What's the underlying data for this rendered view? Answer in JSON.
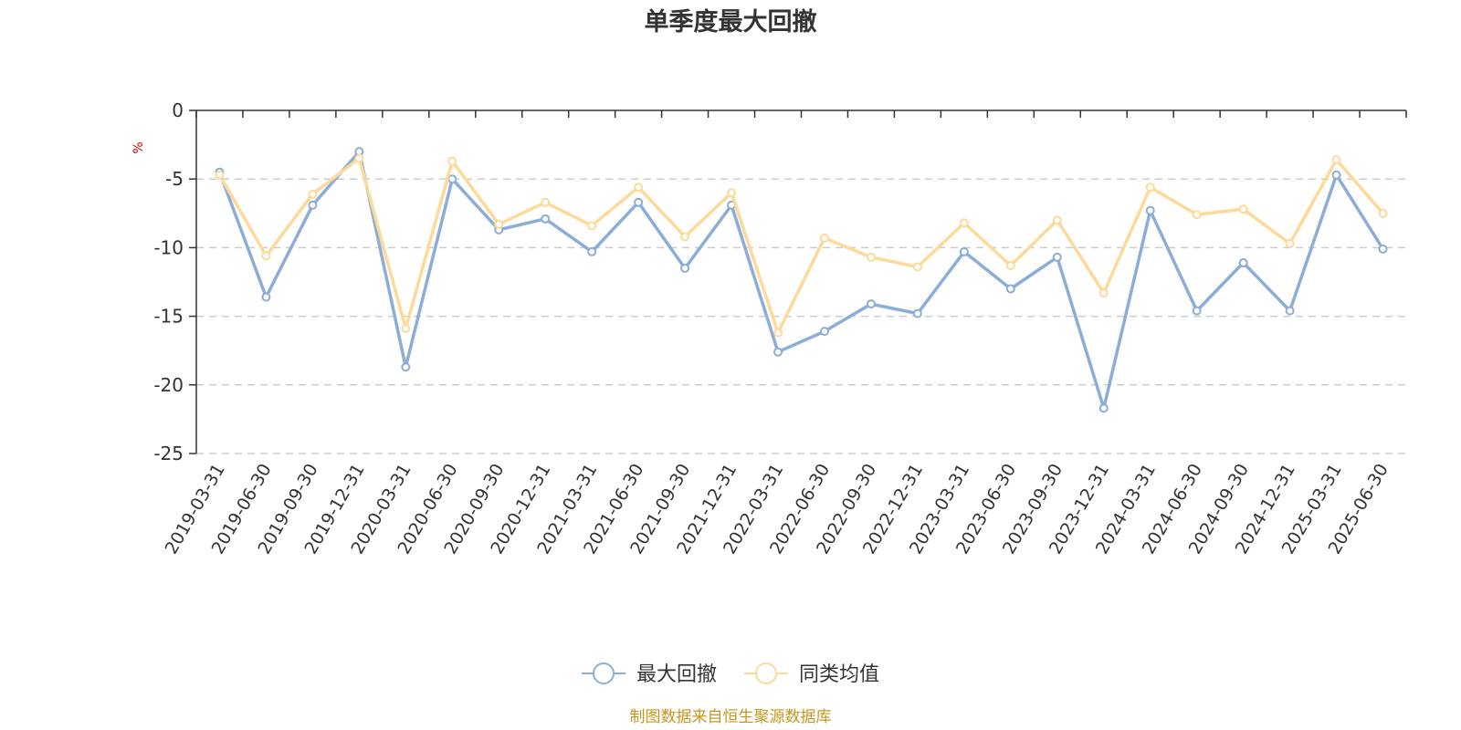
{
  "chart_data": {
    "type": "line",
    "title": "单季度最大回撤",
    "ylabel": "%",
    "ylim": [
      -25,
      0
    ],
    "yticks": [
      0,
      -5,
      -10,
      -15,
      -20,
      -25
    ],
    "grid": "horizontal dashed",
    "legend_position": "bottom-center",
    "categories": [
      "2019-03-31",
      "2019-06-30",
      "2019-09-30",
      "2019-12-31",
      "2020-03-31",
      "2020-06-30",
      "2020-09-30",
      "2020-12-31",
      "2021-03-31",
      "2021-06-30",
      "2021-09-30",
      "2021-12-31",
      "2022-03-31",
      "2022-06-30",
      "2022-09-30",
      "2022-12-31",
      "2023-03-31",
      "2023-06-30",
      "2023-09-30",
      "2023-12-31",
      "2024-03-31",
      "2024-06-30",
      "2024-09-30",
      "2024-12-31",
      "2025-03-31",
      "2025-06-30"
    ],
    "series": [
      {
        "name": "最大回撤",
        "color": "#8badd8",
        "values": [
          -4.5,
          -13.6,
          -6.9,
          -3.0,
          -18.7,
          -5.0,
          -8.7,
          -7.9,
          -10.3,
          -6.7,
          -11.5,
          -6.9,
          -17.6,
          -16.1,
          -14.1,
          -14.8,
          -10.3,
          -13.0,
          -10.7,
          -21.7,
          -7.3,
          -14.6,
          -11.1,
          -14.6,
          -4.7,
          -10.1
        ]
      },
      {
        "name": "同类均值",
        "color": "#fdd99a",
        "values": [
          -4.7,
          -10.6,
          -6.1,
          -3.5,
          -15.9,
          -3.7,
          -8.3,
          -6.7,
          -8.4,
          -5.6,
          -9.2,
          -6.0,
          -16.2,
          -9.3,
          -10.7,
          -11.4,
          -8.2,
          -11.3,
          -8.0,
          -13.3,
          -5.6,
          -7.6,
          -7.2,
          -9.7,
          -3.6,
          -7.5
        ]
      }
    ],
    "source_note": "制图数据来自恒生聚源数据库"
  }
}
